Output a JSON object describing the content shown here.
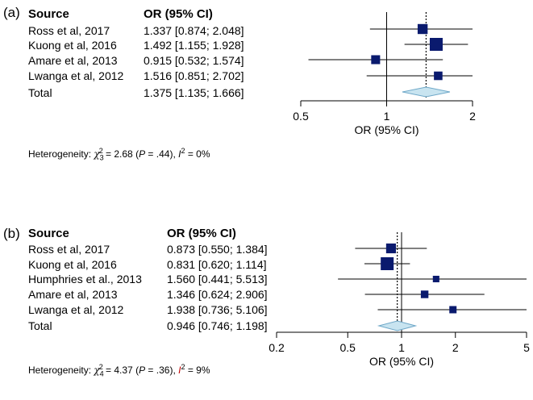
{
  "chart_data": [
    {
      "type": "forest",
      "panel_label": "(a)",
      "col_source": "Source",
      "col_or": "OR (95% CI)",
      "xlabel": "OR (95% CI)",
      "scale": "log",
      "xlim": [
        0.5,
        2
      ],
      "ticks": [
        0.5,
        1,
        2
      ],
      "tick_labels": [
        "0.5",
        "1",
        "2"
      ],
      "pooled_line": 1.375,
      "rows": [
        {
          "study": "Ross et al, 2017",
          "or": 1.337,
          "lo": 0.874,
          "hi": 2.048,
          "ci_text": "1.337 [0.874; 2.048]",
          "weight": 0.6
        },
        {
          "study": "Kuong et al, 2016",
          "or": 1.492,
          "lo": 1.155,
          "hi": 1.928,
          "ci_text": "1.492 [1.155; 1.928]",
          "weight": 1.0
        },
        {
          "study": "Amare et al, 2013",
          "or": 0.915,
          "lo": 0.532,
          "hi": 1.574,
          "ci_text": "0.915 [0.532; 1.574]",
          "weight": 0.45
        },
        {
          "study": "Lwanga et al, 2012",
          "or": 1.516,
          "lo": 0.851,
          "hi": 2.702,
          "ci_text": "1.516 [0.851; 2.702]",
          "weight": 0.4
        }
      ],
      "total": {
        "study": "Total",
        "or": 1.375,
        "lo": 1.135,
        "hi": 1.666,
        "ci_text": "1.375 [1.135; 1.666]"
      },
      "heterogeneity": {
        "lead": "Heterogeneity: ",
        "chi": "χ",
        "df": "3",
        "sq": "2",
        "stat": " = 2.68 (",
        "p": "P",
        "pval": " = .44), ",
        "i": "I",
        "i_sq": "2",
        "i_val": " = 0%"
      }
    },
    {
      "type": "forest",
      "panel_label": "(b)",
      "col_source": "Source",
      "col_or": "OR (95% CI)",
      "xlabel": "OR (95% CI)",
      "scale": "log",
      "xlim": [
        0.2,
        5
      ],
      "ticks": [
        0.2,
        0.5,
        1,
        2,
        5
      ],
      "tick_labels": [
        "0.2",
        "0.5",
        "1",
        "2",
        "5"
      ],
      "pooled_line": 0.946,
      "rows": [
        {
          "study": "Ross et al, 2017",
          "or": 0.873,
          "lo": 0.55,
          "hi": 1.384,
          "ci_text": "0.873 [0.550; 1.384]",
          "weight": 0.65
        },
        {
          "study": "Kuong et al, 2016",
          "or": 0.831,
          "lo": 0.62,
          "hi": 1.114,
          "ci_text": "0.831 [0.620; 1.114]",
          "weight": 1.0
        },
        {
          "study": "Humphries et al., 2013",
          "or": 1.56,
          "lo": 0.441,
          "hi": 5.513,
          "ci_text": "1.560 [0.441; 5.513]",
          "weight": 0.28
        },
        {
          "study": "Amare et al, 2013",
          "or": 1.346,
          "lo": 0.624,
          "hi": 2.906,
          "ci_text": "1.346 [0.624; 2.906]",
          "weight": 0.4
        },
        {
          "study": "Lwanga et al, 2012",
          "or": 1.938,
          "lo": 0.736,
          "hi": 5.106,
          "ci_text": "1.938 [0.736; 5.106]",
          "weight": 0.36
        }
      ],
      "total": {
        "study": "Total",
        "or": 0.946,
        "lo": 0.746,
        "hi": 1.198,
        "ci_text": "0.946 [0.746; 1.198]"
      },
      "heterogeneity": {
        "lead": "Heterogeneity: ",
        "chi": "χ",
        "df": "4",
        "sq": "2",
        "stat": " = 4.37 (",
        "p": "P",
        "pval": " = .36), ",
        "i": "I",
        "i_sq": "2",
        "i_val": " = 9%"
      }
    }
  ],
  "colors": {
    "square": "#0a1a6e",
    "diamond_fill": "#c8e4f0",
    "diamond_stroke": "#6fa8c8",
    "pooled_line": "#000000"
  }
}
